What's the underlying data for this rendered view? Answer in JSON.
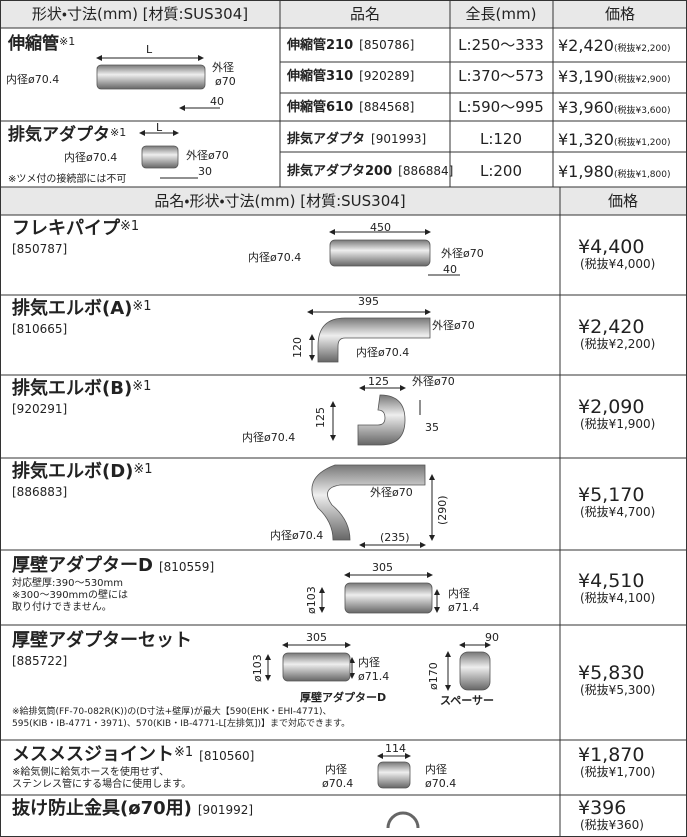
{
  "top_table": {
    "headers": [
      "形状・寸法(mm) [材質:SUS304]",
      "品名",
      "全長(mm)",
      "価格"
    ],
    "groups": [
      {
        "name": "伸縮管",
        "note_mark": "※1",
        "labels": [
          "L",
          "外径",
          "ø70",
          "内径ø70.4",
          "40"
        ],
        "rows": [
          {
            "name": "伸縮管210",
            "code": "[850786]",
            "length": "L:250～333",
            "price": "¥2,420",
            "price_excl": "(税抜¥2,200)"
          },
          {
            "name": "伸縮管310",
            "code": "[920289]",
            "length": "L:370～573",
            "price": "¥3,190",
            "price_excl": "(税抜¥2,900)"
          },
          {
            "name": "伸縮管610",
            "code": "[884568]",
            "length": "L:590～995",
            "price": "¥3,960",
            "price_excl": "(税抜¥3,600)"
          }
        ]
      },
      {
        "name": "排気アダプタ",
        "note_mark": "※1",
        "labels": [
          "L",
          "内径ø70.4",
          "外径ø70",
          "30"
        ],
        "note": "※ツメ付の接続部には不可",
        "rows": [
          {
            "name": "排気アダプタ",
            "code": "[901993]",
            "length": "L:120",
            "price": "¥1,320",
            "price_excl": "(税抜¥1,200)"
          },
          {
            "name": "排気アダプタ200",
            "code": "[886884]",
            "length": "L:200",
            "price": "¥1,980",
            "price_excl": "(税抜¥1,800)"
          }
        ]
      }
    ]
  },
  "product_table": {
    "headers": [
      "品名・形状・寸法(mm) [材質:SUS304]",
      "価格"
    ],
    "items": [
      {
        "name": "フレキパイプ",
        "note_mark": "※1",
        "code": "[850787]",
        "labels": [
          "450",
          "内径ø70.4",
          "外径ø70",
          "40"
        ],
        "price": "¥4,400",
        "price_excl": "(税抜¥4,000)"
      },
      {
        "name": "排気エルボ(A)",
        "note_mark": "※1",
        "code": "[810665]",
        "labels": [
          "395",
          "外径ø70",
          "120",
          "内径ø70.4"
        ],
        "price": "¥2,420",
        "price_excl": "(税抜¥2,200)"
      },
      {
        "name": "排気エルボ(B)",
        "note_mark": "※1",
        "code": "[920291]",
        "labels": [
          "125",
          "外径ø70",
          "125",
          "35",
          "内径ø70.4"
        ],
        "price": "¥2,090",
        "price_excl": "(税抜¥1,900)"
      },
      {
        "name": "排気エルボ(D)",
        "note_mark": "※1",
        "code": "[886883]",
        "labels": [
          "外径ø70",
          "(290)",
          "内径ø70.4",
          "(235)"
        ],
        "price": "¥5,170",
        "price_excl": "(税抜¥4,700)"
      },
      {
        "name": "厚壁アダプターD",
        "code": "[810559]",
        "notes": [
          "対応壁厚:390～530mm",
          "※300～390mmの壁には",
          "取り付けできません。"
        ],
        "labels": [
          "305",
          "ø103",
          "内径",
          "ø71.4"
        ],
        "price": "¥4,510",
        "price_excl": "(税抜¥4,100)"
      },
      {
        "name": "厚壁アダプターセット",
        "code": "[885722]",
        "labels": [
          "305",
          "ø103",
          "内径",
          "ø71.4",
          "厚壁アダプターD",
          "90",
          "ø170",
          "スペーサー"
        ],
        "notes": [
          "※給排気筒(FF-70-082R(K))の(D寸法+壁厚)が最大【590(EHK・EHI-4771)、",
          "595(KIB・IB-4771・3971)、570(KIB・IB-4771-L[左排気])】まで対応できます。"
        ],
        "price": "¥5,830",
        "price_excl": "(税抜¥5,300)"
      },
      {
        "name": "メスメスジョイント",
        "note_mark": "※1",
        "code": "[810560]",
        "notes": [
          "※給気側に給気ホースを使用せず、",
          "ステンレス管にする場合に使用します。"
        ],
        "labels": [
          "114",
          "内径",
          "ø70.4",
          "内径",
          "ø70.4"
        ],
        "price": "¥1,870",
        "price_excl": "(税抜¥1,700)"
      },
      {
        "name": "抜け防止金具(ø70用)",
        "code": "[901992]",
        "price": "¥396",
        "price_excl": "(税抜¥360)"
      }
    ]
  }
}
